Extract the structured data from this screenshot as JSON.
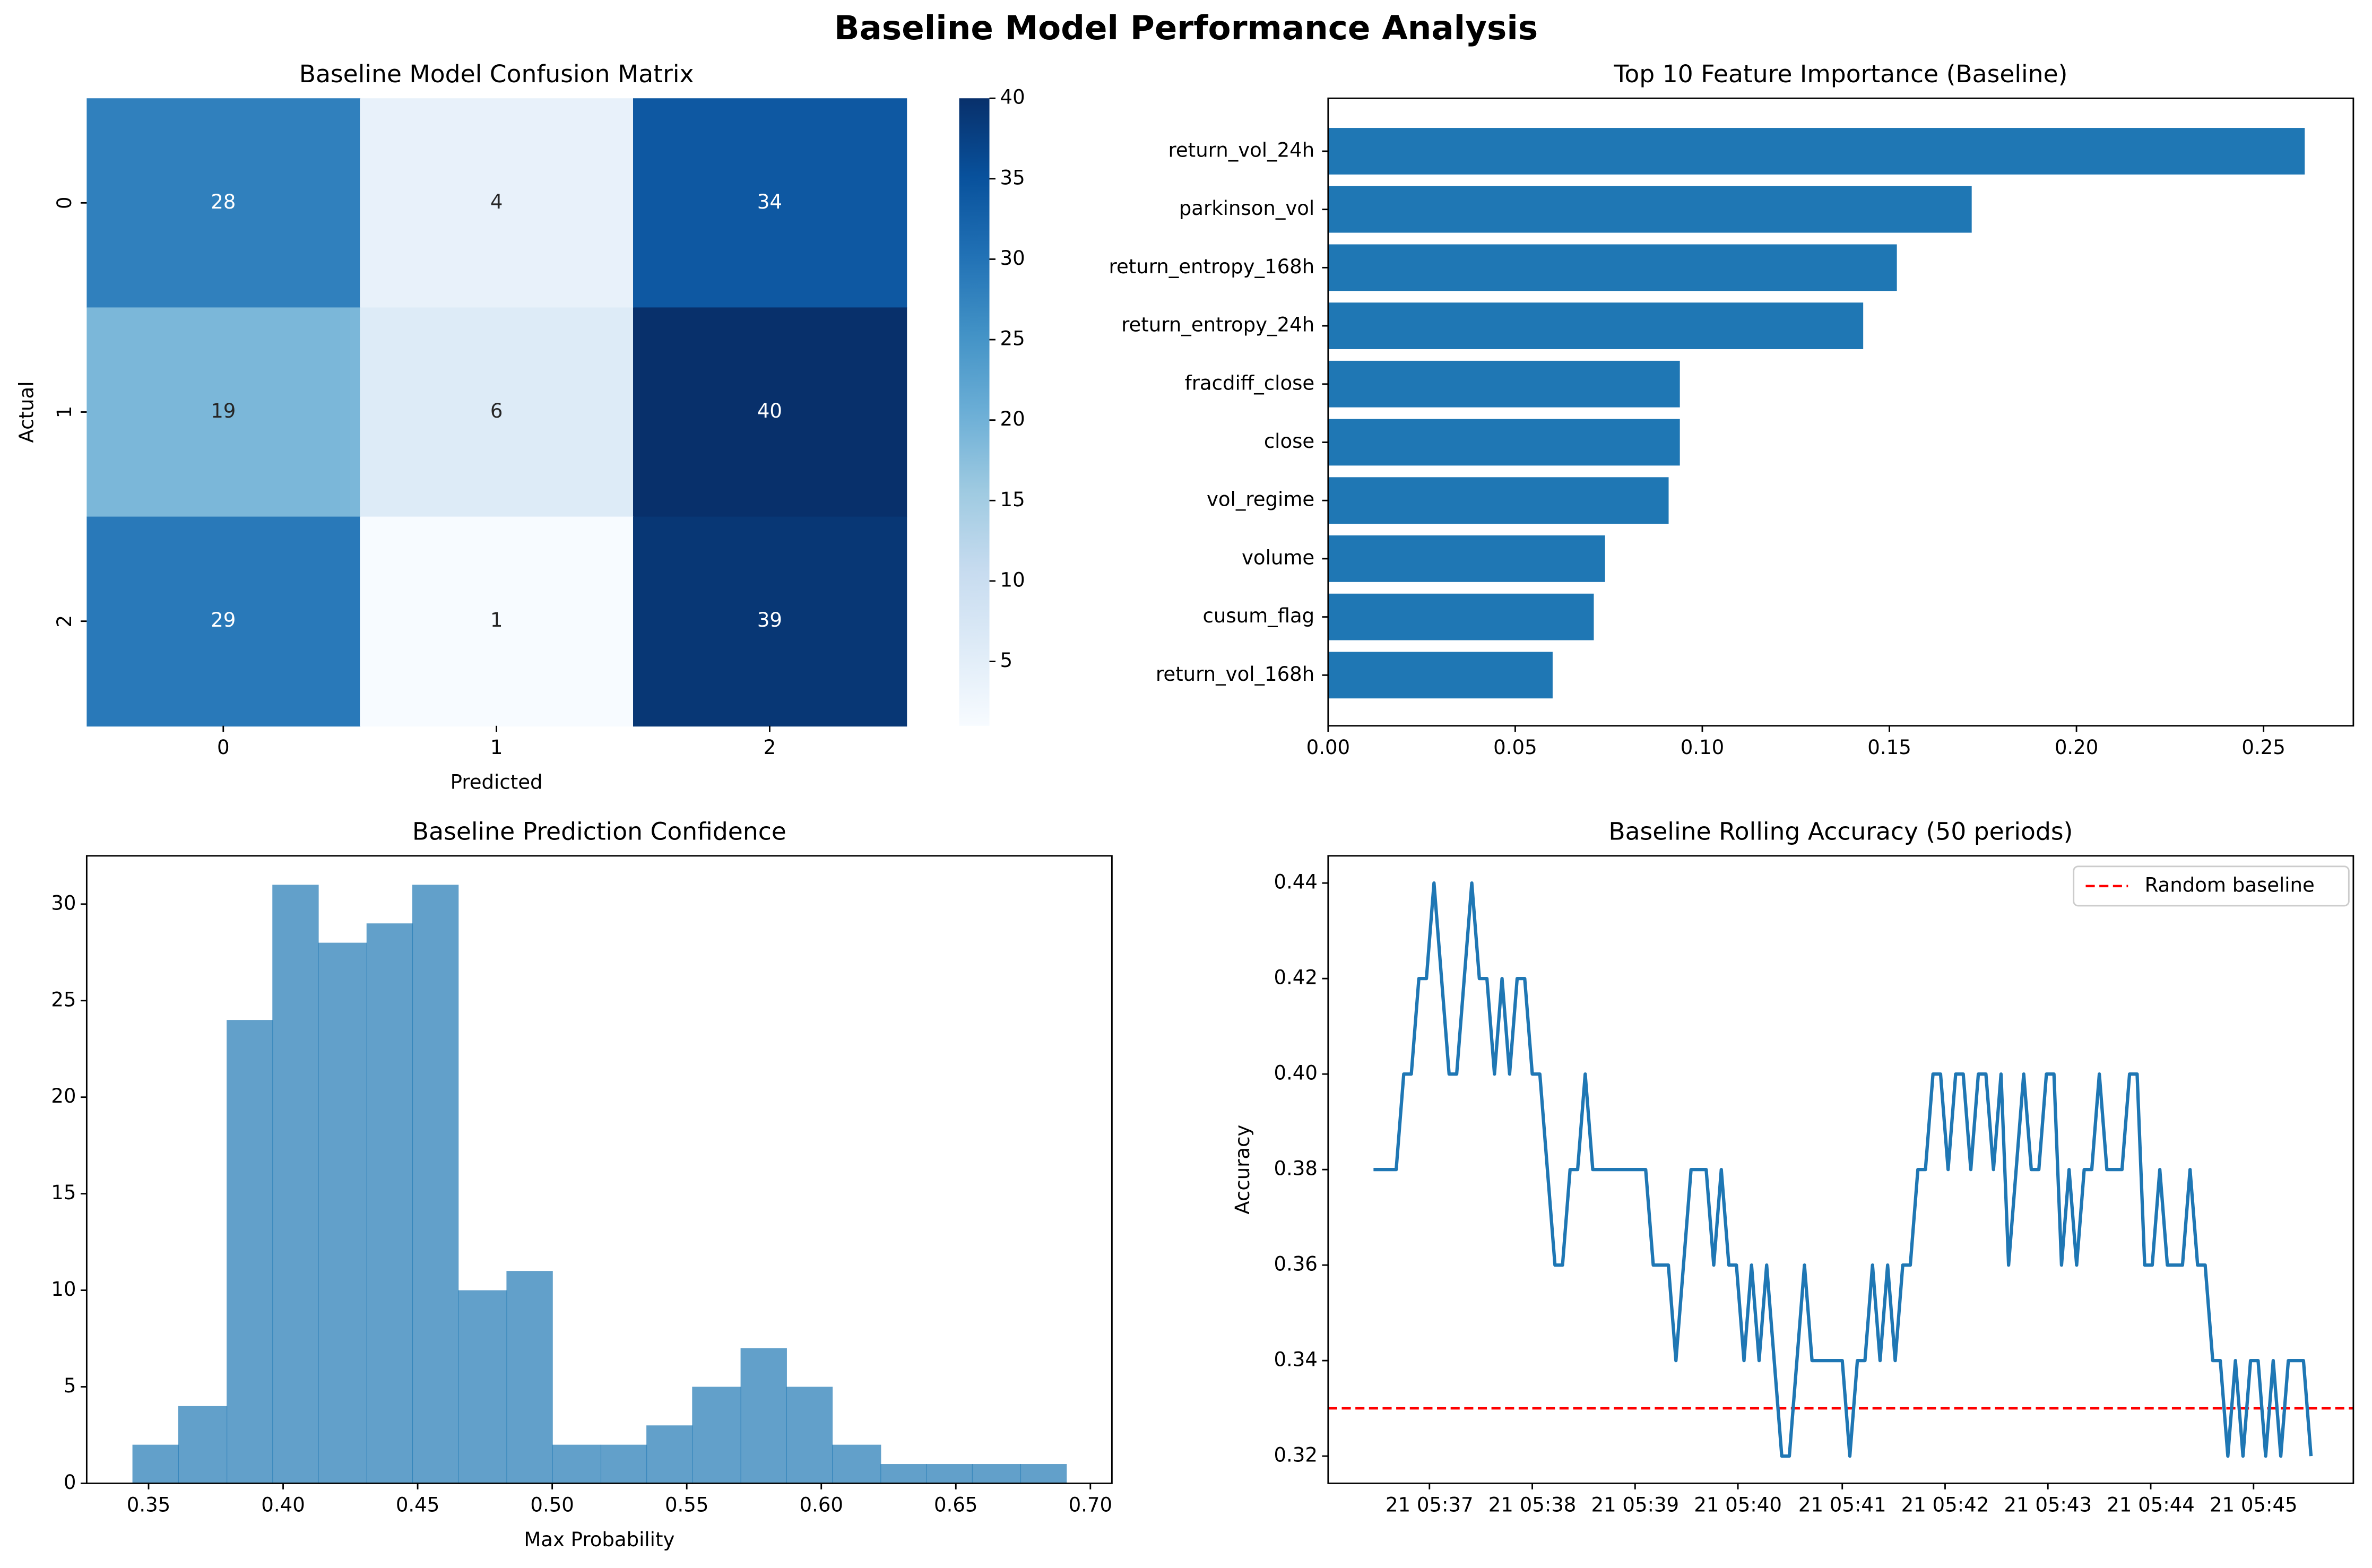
{
  "chart_data": [
    {
      "type": "heatmap",
      "suptitle": "Baseline Model Performance Analysis",
      "title": "Baseline Model Confusion Matrix",
      "xlabel": "Predicted",
      "ylabel": "Actual",
      "x_categories": [
        "0",
        "1",
        "2"
      ],
      "y_categories": [
        "0",
        "1",
        "2"
      ],
      "values": [
        [
          28,
          4,
          34
        ],
        [
          19,
          6,
          40
        ],
        [
          29,
          1,
          39
        ]
      ],
      "colormap": "Blues",
      "clim": [
        1,
        40
      ],
      "cticks": [
        5,
        10,
        15,
        20,
        25,
        30,
        35,
        40
      ],
      "annot": true
    },
    {
      "type": "barh",
      "title": "Top 10 Feature Importance (Baseline)",
      "categories": [
        "return_vol_24h",
        "parkinson_vol",
        "return_entropy_168h",
        "return_entropy_24h",
        "fracdiff_close",
        "close",
        "vol_regime",
        "volume",
        "cusum_flag",
        "return_vol_168h"
      ],
      "values": [
        0.261,
        0.172,
        0.152,
        0.143,
        0.094,
        0.094,
        0.091,
        0.074,
        0.071,
        0.06
      ],
      "color": "#1f77b4",
      "xlim": [
        0,
        0.274
      ],
      "xticks": [
        {
          "value": 0,
          "label": "0.00"
        },
        0.05,
        {
          "value": 0.1,
          "label": "0.10"
        },
        0.15,
        {
          "value": 0.2,
          "label": "0.20"
        },
        0.25
      ]
    },
    {
      "type": "histogram",
      "title": "Baseline Prediction Confidence",
      "xlabel": "Max Probability",
      "bins": [
        0.344,
        0.361,
        0.379,
        0.396,
        0.413,
        0.431,
        0.448,
        0.465,
        0.483,
        0.5,
        0.518,
        0.535,
        0.552,
        0.57,
        0.587,
        0.604,
        0.622,
        0.639,
        0.656,
        0.674,
        0.691
      ],
      "values": [
        2,
        4,
        24,
        31,
        28,
        29,
        31,
        10,
        11,
        2,
        2,
        3,
        5,
        7,
        5,
        2,
        1,
        1,
        1,
        1
      ],
      "color": "#1f77b4",
      "opacity": 0.7,
      "xlim": [
        0.327,
        0.708
      ],
      "ylim": [
        0,
        32.5
      ],
      "xticks": [
        0.35,
        {
          "value": 0.4,
          "label": "0.40"
        },
        0.45,
        {
          "value": 0.5,
          "label": "0.50"
        },
        0.55,
        {
          "value": 0.6,
          "label": "0.60"
        },
        0.65,
        {
          "value": 0.7,
          "label": "0.70"
        }
      ],
      "yticks": [
        0,
        5,
        10,
        15,
        20,
        25,
        30
      ]
    },
    {
      "type": "line",
      "title": "Baseline Rolling Accuracy (50 periods)",
      "ylabel": "Accuracy",
      "series": [
        {
          "color": "#1f77b4",
          "values": [
            0.38,
            0.38,
            0.38,
            0.38,
            0.4,
            0.4,
            0.42,
            0.42,
            0.44,
            0.42,
            0.4,
            0.4,
            0.42,
            0.44,
            0.42,
            0.42,
            0.4,
            0.42,
            0.4,
            0.42,
            0.42,
            0.4,
            0.4,
            0.38,
            0.36,
            0.36,
            0.38,
            0.38,
            0.4,
            0.38,
            0.38,
            0.38,
            0.38,
            0.38,
            0.38,
            0.38,
            0.38,
            0.36,
            0.36,
            0.36,
            0.34,
            0.36,
            0.38,
            0.38,
            0.38,
            0.36,
            0.38,
            0.36,
            0.36,
            0.34,
            0.36,
            0.34,
            0.36,
            0.34,
            0.32,
            0.32,
            0.34,
            0.36,
            0.34,
            0.34,
            0.34,
            0.34,
            0.34,
            0.32,
            0.34,
            0.34,
            0.36,
            0.34,
            0.36,
            0.34,
            0.36,
            0.36,
            0.38,
            0.38,
            0.4,
            0.4,
            0.38,
            0.4,
            0.4,
            0.38,
            0.4,
            0.4,
            0.38,
            0.4,
            0.36,
            0.38,
            0.4,
            0.38,
            0.38,
            0.4,
            0.4,
            0.36,
            0.38,
            0.36,
            0.38,
            0.38,
            0.4,
            0.38,
            0.38,
            0.38,
            0.4,
            0.4,
            0.36,
            0.36,
            0.38,
            0.36,
            0.36,
            0.36,
            0.38,
            0.36,
            0.36,
            0.34,
            0.34,
            0.32,
            0.34,
            0.32,
            0.34,
            0.34,
            0.32,
            0.34,
            0.32,
            0.34,
            0.34,
            0.34,
            0.32
          ]
        }
      ],
      "reference_lines": [
        {
          "name": "Random baseline",
          "value": 0.33,
          "color": "#ff0000",
          "style": "dashed"
        }
      ],
      "legend": "upper right",
      "xlim": [
        -6,
        129.6
      ],
      "ylim": [
        0.3143,
        0.4457
      ],
      "xticks": [
        {
          "value": 7.4,
          "label": "21 05:37"
        },
        {
          "value": 21,
          "label": "21 05:38"
        },
        {
          "value": 34.6,
          "label": "21 05:39"
        },
        {
          "value": 48.2,
          "label": "21 05:40"
        },
        {
          "value": 62,
          "label": "21 05:41"
        },
        {
          "value": 75.6,
          "label": "21 05:42"
        },
        {
          "value": 89.2,
          "label": "21 05:43"
        },
        {
          "value": 102.8,
          "label": "21 05:44"
        },
        {
          "value": 116.4,
          "label": "21 05:45"
        }
      ],
      "yticks": [
        0.32,
        0.34,
        0.36,
        0.38,
        {
          "value": 0.4,
          "label": "0.40"
        },
        0.42,
        0.44
      ]
    }
  ]
}
